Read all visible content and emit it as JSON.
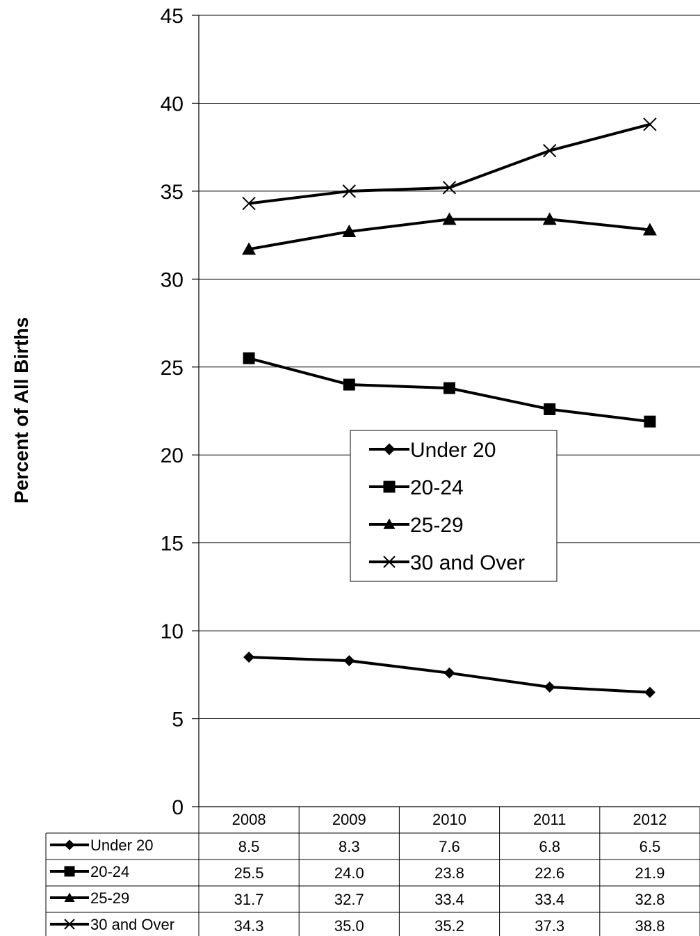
{
  "chart_data": {
    "type": "line",
    "title": "",
    "xlabel": "",
    "ylabel": "Percent of All Births",
    "categories": [
      "2008",
      "2009",
      "2010",
      "2011",
      "2012"
    ],
    "ylim": [
      0,
      45
    ],
    "yticks": [
      0,
      5,
      10,
      15,
      20,
      25,
      30,
      35,
      40,
      45
    ],
    "grid": true,
    "legend_position": "center",
    "series": [
      {
        "name": "Under 20",
        "marker": "diamond",
        "values": [
          8.5,
          8.3,
          7.6,
          6.8,
          6.5
        ],
        "labels": [
          "8.5",
          "8.3",
          "7.6",
          "6.8",
          "6.5"
        ]
      },
      {
        "name": "20-24",
        "marker": "square",
        "values": [
          25.5,
          24.0,
          23.8,
          22.6,
          21.9
        ],
        "labels": [
          "25.5",
          "24.0",
          "23.8",
          "22.6",
          "21.9"
        ]
      },
      {
        "name": "25-29",
        "marker": "triangle",
        "values": [
          31.7,
          32.7,
          33.4,
          33.4,
          32.8
        ],
        "labels": [
          "31.7",
          "32.7",
          "33.4",
          "33.4",
          "32.8"
        ]
      },
      {
        "name": "30 and Over",
        "marker": "x",
        "values": [
          34.3,
          35.0,
          35.2,
          37.3,
          38.8
        ],
        "labels": [
          "34.3",
          "35.0",
          "35.2",
          "37.3",
          "38.8"
        ]
      }
    ],
    "data_table": true,
    "line_color": "#000000"
  }
}
